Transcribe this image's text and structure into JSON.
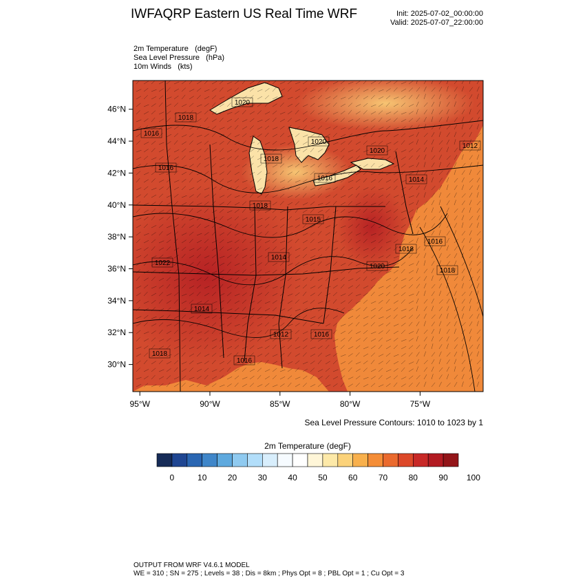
{
  "header": {
    "title": "IWFAQRP Eastern US Real Time WRF",
    "init": "Init: 2025-07-02_00:00:00",
    "valid": "Valid: 2025-07-07_22:00:00"
  },
  "fields": [
    {
      "name": "2m Temperature",
      "unit": "(degF)"
    },
    {
      "name": "Sea Level Pressure",
      "unit": "(hPa)"
    },
    {
      "name": "10m Winds",
      "unit": "(kts)"
    }
  ],
  "map": {
    "lat_range": [
      28.3,
      47.8
    ],
    "lon_range": [
      -95.5,
      -70.5
    ],
    "lat_ticks": [
      "30°N",
      "32°N",
      "34°N",
      "36°N",
      "38°N",
      "40°N",
      "42°N",
      "44°N",
      "46°N"
    ],
    "lon_ticks": [
      "95°W",
      "90°W",
      "85°W",
      "80°W",
      "75°W"
    ],
    "pressure_labels": [
      "1020",
      "1018",
      "1020",
      "1018",
      "1020",
      "1016",
      "1012",
      "1016",
      "1018",
      "1015",
      "1014",
      "1018",
      "1016",
      "1018",
      "1020",
      "1022",
      "1014",
      "1012",
      "1016",
      "1016",
      "1018",
      "1016",
      "1014"
    ],
    "land_color": "#d24a2e",
    "ocean_color": "#f0893a",
    "lake_color": "#fbe2a8"
  },
  "contour_note": "Sea Level Pressure Contours: 1010 to 1023 by 1",
  "colorbar": {
    "title": "2m Temperature  (degF)",
    "colors": [
      "#162b57",
      "#1f4692",
      "#2a66b2",
      "#3f86c9",
      "#5ea9de",
      "#8fcaf0",
      "#b2defa",
      "#d8eefc",
      "#f6fbff",
      "#ffffff",
      "#fff6d8",
      "#fde9a8",
      "#fbd27a",
      "#f8b04c",
      "#f48d37",
      "#ea6a2e",
      "#dc4829",
      "#c82927",
      "#b21b22",
      "#931519"
    ],
    "labels": [
      "0",
      "10",
      "20",
      "30",
      "40",
      "50",
      "60",
      "70",
      "80",
      "90",
      "100"
    ]
  },
  "footer": {
    "line1": "OUTPUT FROM WRF V4.6.1 MODEL",
    "line2": "WE = 310 ; SN = 275 ; Levels = 38 ; Dis = 8km ; Phys Opt = 8 ; PBL Opt = 1 ; Cu Opt = 3"
  }
}
